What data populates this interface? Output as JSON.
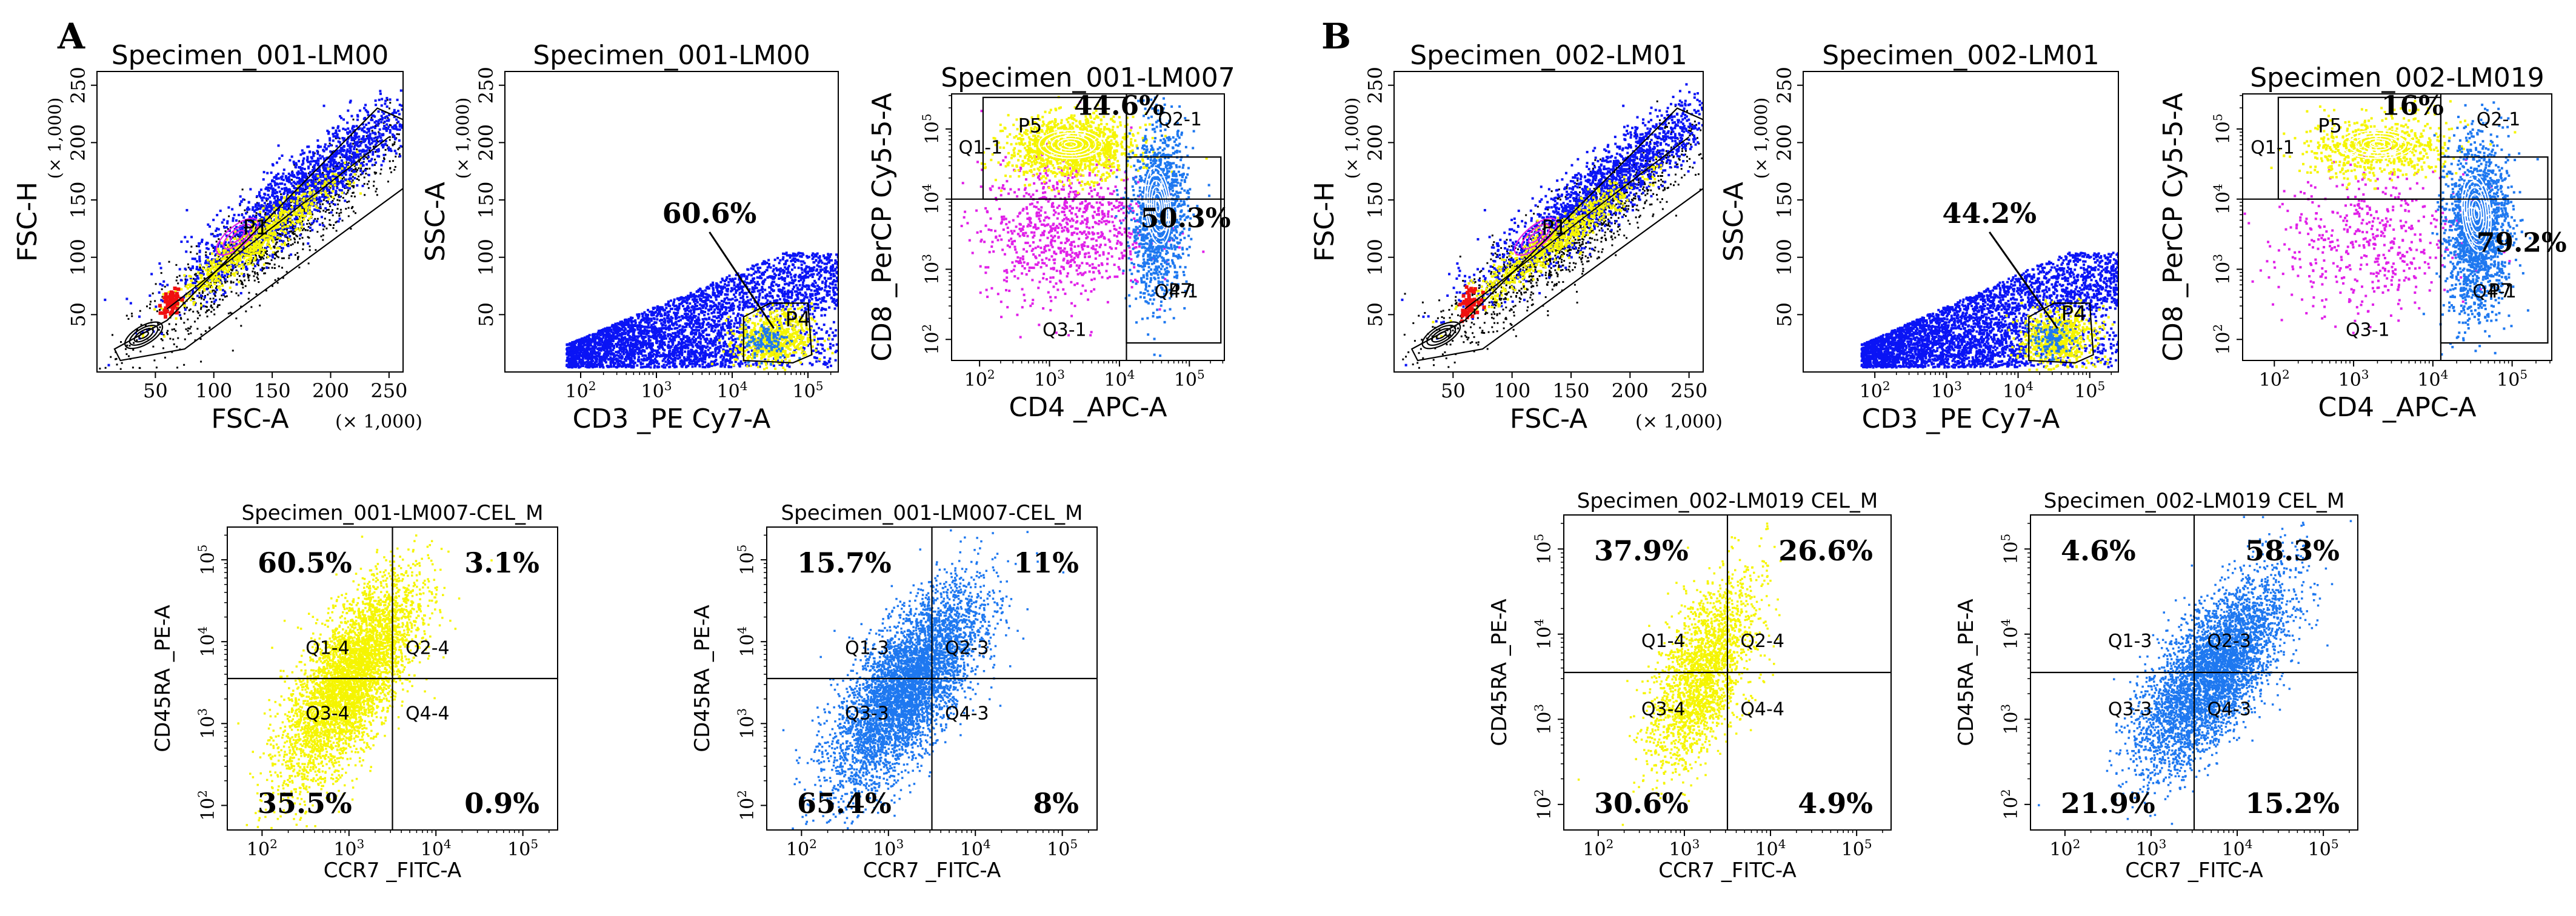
{
  "figure": {
    "panel_labels": [
      "A",
      "B"
    ],
    "scale_note": "(× 1,000)"
  },
  "colors": {
    "yellow": "#f5f500",
    "blue": "#0a14f5",
    "lightblue": "#1e78f0",
    "magenta": "#e020e8",
    "red": "#f01010",
    "black": "#000000"
  },
  "chart_data": [
    {
      "id": "A1",
      "type": "scatter",
      "title": "Specimen_001-LM00",
      "xlabel": "FSC-A",
      "ylabel": "FSC-H",
      "xunit": "(× 1,000)",
      "yunit": "(× 1,000)",
      "xscale": "linear",
      "yscale": "linear",
      "xlim": [
        0,
        262
      ],
      "ylim": [
        0,
        262
      ],
      "xticks": [
        50,
        100,
        150,
        200,
        250
      ],
      "yticks": [
        50,
        100,
        150,
        200,
        250
      ],
      "gates": [
        {
          "name": "P1",
          "label_at": [
            125,
            120
          ]
        }
      ],
      "annotations": []
    },
    {
      "id": "A2",
      "type": "scatter",
      "title": "Specimen_001-LM00",
      "xlabel": "CD3 _PE Cy7-A",
      "ylabel": "SSC-A",
      "yunit": "(× 1,000)",
      "xscale": "log",
      "yscale": "linear",
      "xlim": [
        1,
        5.4
      ],
      "ylim": [
        0,
        262
      ],
      "xticks": [
        "10^2",
        "10^3",
        "10^4",
        "10^5"
      ],
      "yticks": [
        50,
        100,
        150,
        200,
        250
      ],
      "gates": [
        {
          "name": "P4",
          "label_at": [
            4.7,
            40
          ]
        }
      ],
      "annotations": [
        {
          "text": "60.6%",
          "at": [
            3.7,
            130
          ]
        }
      ]
    },
    {
      "id": "A3",
      "type": "scatter",
      "title": "Specimen_001-LM007",
      "xlabel": "CD4 _APC-A",
      "ylabel": "CD8 _PerCP Cy5-5-A",
      "xscale": "log",
      "yscale": "log",
      "xlim": [
        1.6,
        5.5
      ],
      "ylim": [
        1.7,
        5.5
      ],
      "xticks": [
        "10^2",
        "10^3",
        "10^4",
        "10^5"
      ],
      "yticks": [
        "10^2",
        "10^3",
        "10^4",
        "10^5"
      ],
      "quadrants": [
        "Q1-1",
        "Q2-1",
        "Q3-1",
        "Q4-1"
      ],
      "gates": [
        {
          "name": "P5"
        },
        {
          "name": "P7"
        }
      ],
      "annotations": [
        {
          "text": "44.6%"
        },
        {
          "text": "50.3%"
        }
      ]
    },
    {
      "id": "A4",
      "type": "scatter",
      "title": "Specimen_001-LM007-CEL_M",
      "xlabel": "CCR7 _FITC-A",
      "ylabel": "CD45RA _PE-A",
      "xscale": "log",
      "yscale": "log",
      "xlim": [
        1.6,
        5.4
      ],
      "ylim": [
        1.7,
        5.4
      ],
      "xticks": [
        "10^2",
        "10^3",
        "10^4",
        "10^5"
      ],
      "yticks": [
        "10^2",
        "10^3",
        "10^4",
        "10^5"
      ],
      "quadrants": [
        "Q1-4",
        "Q2-4",
        "Q3-4",
        "Q4-4"
      ],
      "quadrant_percent": {
        "Q1": "60.5%",
        "Q2": "3.1%",
        "Q3": "35.5%",
        "Q4": "0.9%"
      }
    },
    {
      "id": "A5",
      "type": "scatter",
      "title": "Specimen_001-LM007-CEL_M",
      "xlabel": "CCR7 _FITC-A",
      "ylabel": "CD45RA _PE-A",
      "xscale": "log",
      "yscale": "log",
      "xlim": [
        1.6,
        5.4
      ],
      "ylim": [
        1.7,
        5.4
      ],
      "xticks": [
        "10^2",
        "10^3",
        "10^4",
        "10^5"
      ],
      "yticks": [
        "10^2",
        "10^3",
        "10^4",
        "10^5"
      ],
      "quadrants": [
        "Q1-3",
        "Q2-3",
        "Q3-3",
        "Q4-3"
      ],
      "quadrant_percent": {
        "Q1": "15.7%",
        "Q2": "11%",
        "Q3": "65.4%",
        "Q4": "8%"
      }
    },
    {
      "id": "B1",
      "type": "scatter",
      "title": "Specimen_002-LM01",
      "xlabel": "FSC-A",
      "ylabel": "FSC-H",
      "xunit": "(× 1,000)",
      "yunit": "(× 1,000)",
      "xscale": "linear",
      "yscale": "linear",
      "xlim": [
        0,
        262
      ],
      "ylim": [
        0,
        262
      ],
      "xticks": [
        50,
        100,
        150,
        200,
        250
      ],
      "yticks": [
        50,
        100,
        150,
        200,
        250
      ],
      "gates": [
        {
          "name": "P1",
          "label_at": [
            125,
            120
          ]
        }
      ],
      "annotations": []
    },
    {
      "id": "B2",
      "type": "scatter",
      "title": "Specimen_002-LM01",
      "xlabel": "CD3 _PE Cy7-A",
      "ylabel": "SSC-A",
      "yunit": "(× 1,000)",
      "xscale": "log",
      "yscale": "linear",
      "xlim": [
        1,
        5.4
      ],
      "ylim": [
        0,
        262
      ],
      "xticks": [
        "10^2",
        "10^3",
        "10^4",
        "10^5"
      ],
      "yticks": [
        50,
        100,
        150,
        200,
        250
      ],
      "gates": [
        {
          "name": "P4",
          "label_at": [
            4.6,
            45
          ]
        }
      ],
      "annotations": [
        {
          "text": "44.2%",
          "at": [
            3.6,
            130
          ]
        }
      ]
    },
    {
      "id": "B3",
      "type": "scatter",
      "title": "Specimen_002-LM019",
      "xlabel": "CD4 _APC-A",
      "ylabel": "CD8 _PerCP Cy5-5-A",
      "xscale": "log",
      "yscale": "log",
      "xlim": [
        1.6,
        5.5
      ],
      "ylim": [
        1.7,
        5.5
      ],
      "xticks": [
        "10^2",
        "10^3",
        "10^4",
        "10^5"
      ],
      "yticks": [
        "10^2",
        "10^3",
        "10^4",
        "10^5"
      ],
      "quadrants": [
        "Q1-1",
        "Q2-1",
        "Q3-1",
        "Q4-1"
      ],
      "gates": [
        {
          "name": "P5"
        },
        {
          "name": "P7"
        }
      ],
      "annotations": [
        {
          "text": "16%"
        },
        {
          "text": "79.2%"
        }
      ]
    },
    {
      "id": "B4",
      "type": "scatter",
      "title": "Specimen_002-LM019 CEL_M",
      "xlabel": "CCR7 _FITC-A",
      "ylabel": "CD45RA _PE-A",
      "xscale": "log",
      "yscale": "log",
      "xlim": [
        1.6,
        5.4
      ],
      "ylim": [
        1.7,
        5.4
      ],
      "xticks": [
        "10^2",
        "10^3",
        "10^4",
        "10^5"
      ],
      "yticks": [
        "10^2",
        "10^3",
        "10^4",
        "10^5"
      ],
      "quadrants": [
        "Q1-4",
        "Q2-4",
        "Q3-4",
        "Q4-4"
      ],
      "quadrant_percent": {
        "Q1": "37.9%",
        "Q2": "26.6%",
        "Q3": "30.6%",
        "Q4": "4.9%"
      }
    },
    {
      "id": "B5",
      "type": "scatter",
      "title": "Specimen_002-LM019 CEL_M",
      "xlabel": "CCR7 _FITC-A",
      "ylabel": "CD45RA _PE-A",
      "xscale": "log",
      "yscale": "log",
      "xlim": [
        1.6,
        5.4
      ],
      "ylim": [
        1.7,
        5.4
      ],
      "xticks": [
        "10^2",
        "10^3",
        "10^4",
        "10^5"
      ],
      "yticks": [
        "10^2",
        "10^3",
        "10^4",
        "10^5"
      ],
      "quadrants": [
        "Q1-3",
        "Q2-3",
        "Q3-3",
        "Q4-3"
      ],
      "quadrant_percent": {
        "Q1": "4.6%",
        "Q2": "58.3%",
        "Q3": "21.9%",
        "Q4": "15.2%"
      }
    }
  ]
}
